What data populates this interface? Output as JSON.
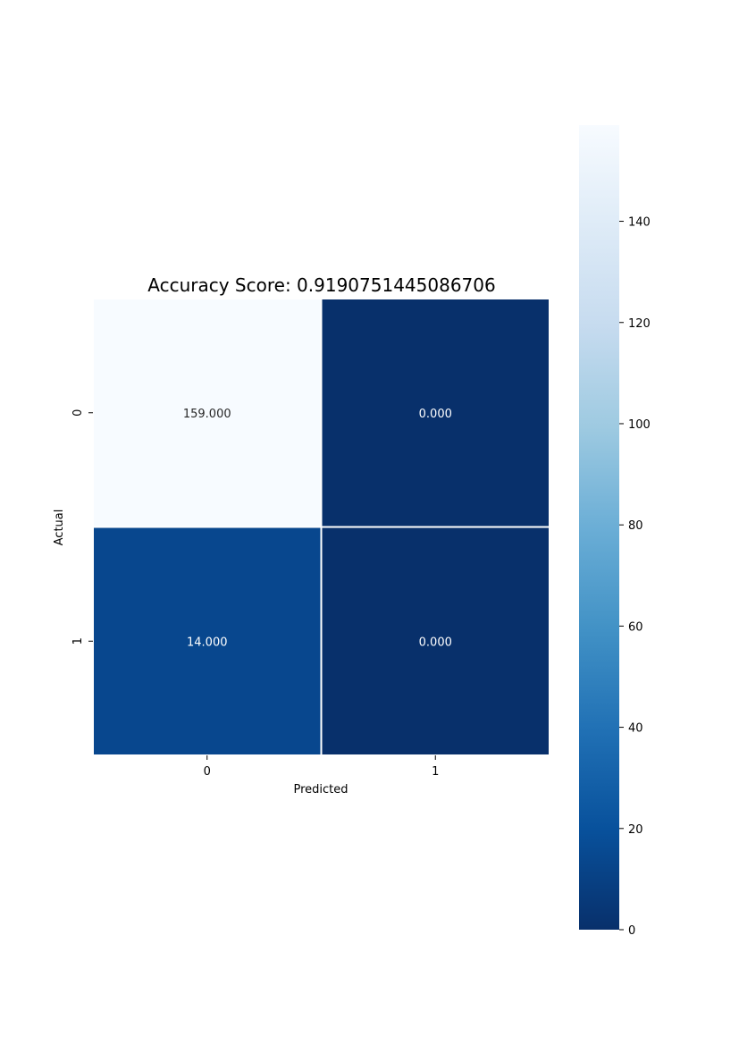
{
  "chart_data": {
    "type": "heatmap",
    "title": "Accuracy Score: 0.9190751445086706",
    "xlabel": "Predicted",
    "ylabel": "Actual",
    "x_categories": [
      "0",
      "1"
    ],
    "y_categories": [
      "0",
      "1"
    ],
    "matrix": [
      [
        159,
        0
      ],
      [
        14,
        0
      ]
    ],
    "cell_labels": [
      [
        "159.000",
        "0.000"
      ],
      [
        "14.000",
        "0.000"
      ]
    ],
    "colormap": "Blues_r",
    "colors": {
      "low": "#08306b",
      "high": "#f7fbff",
      "text_on_light": "#262626",
      "text_on_dark": "#ffffff",
      "cell_border": "#ffffff"
    },
    "colorbar": {
      "range": [
        0,
        159
      ],
      "ticks": [
        0,
        20,
        40,
        60,
        80,
        100,
        120,
        140
      ],
      "tick_labels": [
        "0",
        "20",
        "40",
        "60",
        "80",
        "100",
        "120",
        "140"
      ]
    }
  }
}
